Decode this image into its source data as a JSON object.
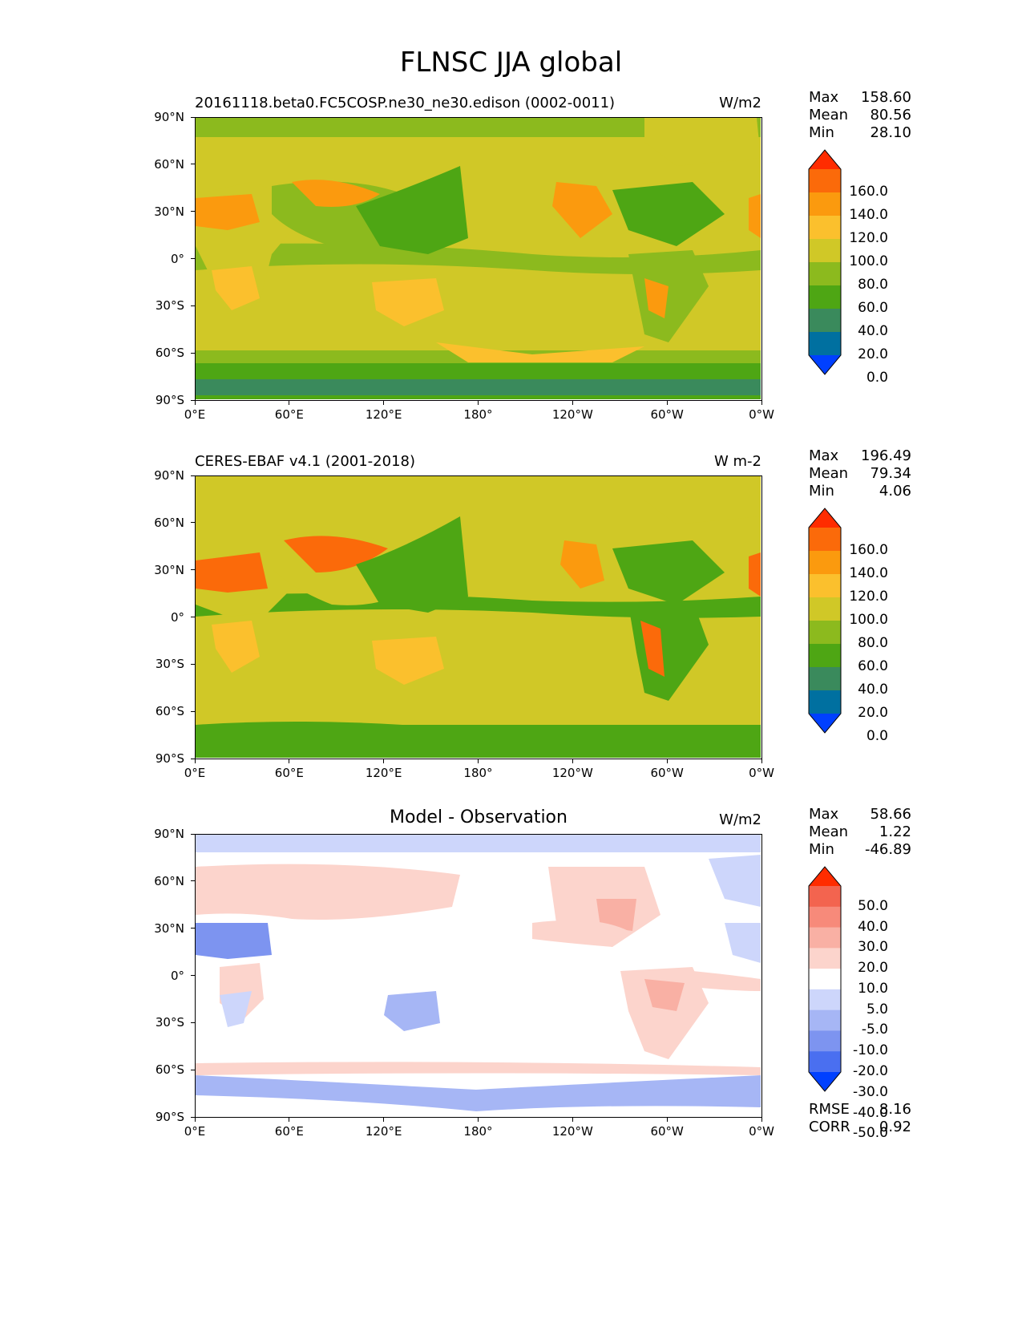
{
  "figure": {
    "title": "FLNSC JJA global"
  },
  "x_ticks": [
    "0°E",
    "60°E",
    "120°E",
    "180°",
    "120°W",
    "60°W",
    "0°W"
  ],
  "y_ticks": [
    "90°N",
    "60°N",
    "30°N",
    "0°",
    "30°S",
    "60°S",
    "90°S"
  ],
  "colors": {
    "field": [
      "#0040ff",
      "#0070a0",
      "#3a8a5c",
      "#4ea614",
      "#8cba1e",
      "#d0c827",
      "#fbc02d",
      "#fb9a0e",
      "#fb6a0a",
      "#ff2c00"
    ],
    "diff": [
      "#0040ff",
      "#4a6ff0",
      "#7d94f0",
      "#a6b6f5",
      "#cdd6fb",
      "#ffffff",
      "#fcd4cc",
      "#f9b0a4",
      "#f78a7a",
      "#f3644f",
      "#ff2c00"
    ]
  },
  "chart_data": [
    {
      "type": "heatmap",
      "title": "20161118.beta0.FC5COSP.ne30_ne30.edison (0002-0011)",
      "units": "W/m2",
      "stats": {
        "max": "158.60",
        "mean": "80.56",
        "min": "28.10"
      },
      "colorbar_levels": [
        "160.0",
        "140.0",
        "120.0",
        "100.0",
        "80.0",
        "60.0",
        "40.0",
        "20.0",
        "0.0"
      ],
      "x_range": [
        0,
        360
      ],
      "y_range": [
        -90,
        90
      ]
    },
    {
      "type": "heatmap",
      "title": "CERES-EBAF v4.1 (2001-2018)",
      "units": "W m-2",
      "stats": {
        "max": "196.49",
        "mean": "79.34",
        "min": "4.06"
      },
      "colorbar_levels": [
        "160.0",
        "140.0",
        "120.0",
        "100.0",
        "80.0",
        "60.0",
        "40.0",
        "20.0",
        "0.0"
      ],
      "x_range": [
        0,
        360
      ],
      "y_range": [
        -90,
        90
      ]
    },
    {
      "type": "heatmap",
      "title": "Model - Observation",
      "units": "W/m2",
      "stats": {
        "max": "58.66",
        "mean": "1.22",
        "min": "-46.89"
      },
      "colorbar_levels": [
        "50.0",
        "40.0",
        "30.0",
        "20.0",
        "10.0",
        "5.0",
        "-5.0",
        "-10.0",
        "-20.0",
        "-30.0",
        "-40.0",
        "-50.0"
      ],
      "metrics": {
        "rmse_label": "RMSE",
        "rmse": "8.16",
        "corr_label": "CORR",
        "corr": "0.92"
      },
      "x_range": [
        0,
        360
      ],
      "y_range": [
        -90,
        90
      ]
    }
  ]
}
